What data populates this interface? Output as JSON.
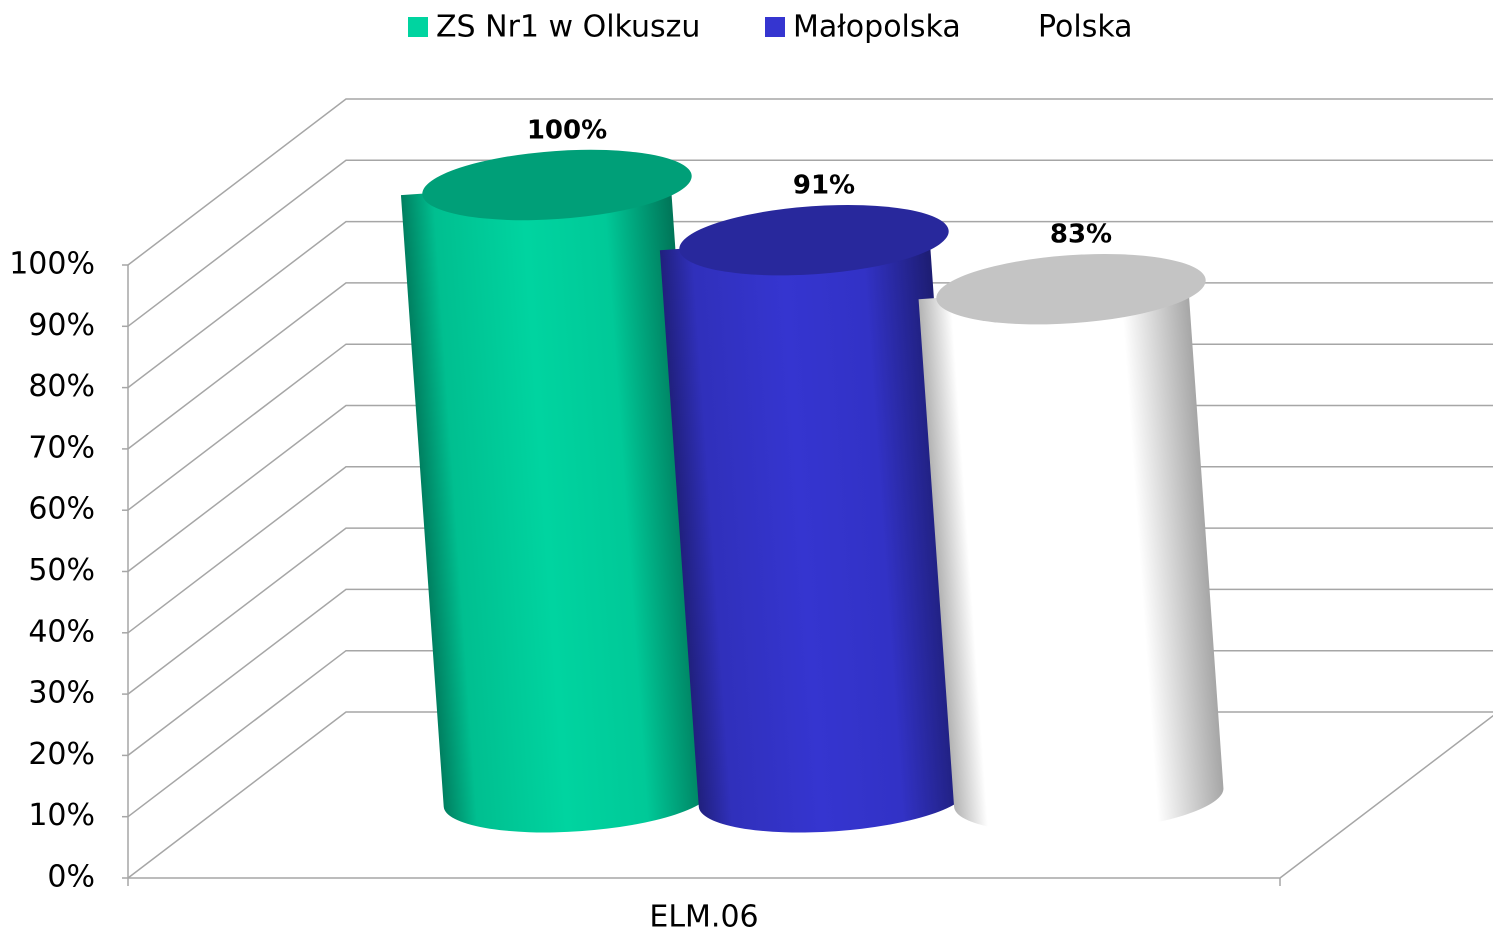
{
  "chart_data": {
    "type": "cylinder",
    "categories": [
      "ELM.06"
    ],
    "series": [
      {
        "name": "ZS Nr1 w Olkuszu",
        "color": "#00d4a0",
        "values": [
          100
        ],
        "value_labels": [
          "100%"
        ]
      },
      {
        "name": "Małopolska",
        "color": "#3535d0",
        "values": [
          91
        ],
        "value_labels": [
          "91%"
        ]
      },
      {
        "name": "Polska",
        "color": "#ffffff",
        "values": [
          83
        ],
        "value_labels": [
          "83%"
        ]
      }
    ],
    "ylim": [
      0,
      100
    ],
    "yticks": [
      {
        "value": 0,
        "label": "0%"
      },
      {
        "value": 10,
        "label": "10%"
      },
      {
        "value": 20,
        "label": "20%"
      },
      {
        "value": 30,
        "label": "30%"
      },
      {
        "value": 40,
        "label": "40%"
      },
      {
        "value": 50,
        "label": "50%"
      },
      {
        "value": 60,
        "label": "60%"
      },
      {
        "value": 70,
        "label": "70%"
      },
      {
        "value": 80,
        "label": "80%"
      },
      {
        "value": 90,
        "label": "90%"
      },
      {
        "value": 100,
        "label": "100%"
      }
    ],
    "grid": true,
    "legend": "top"
  }
}
